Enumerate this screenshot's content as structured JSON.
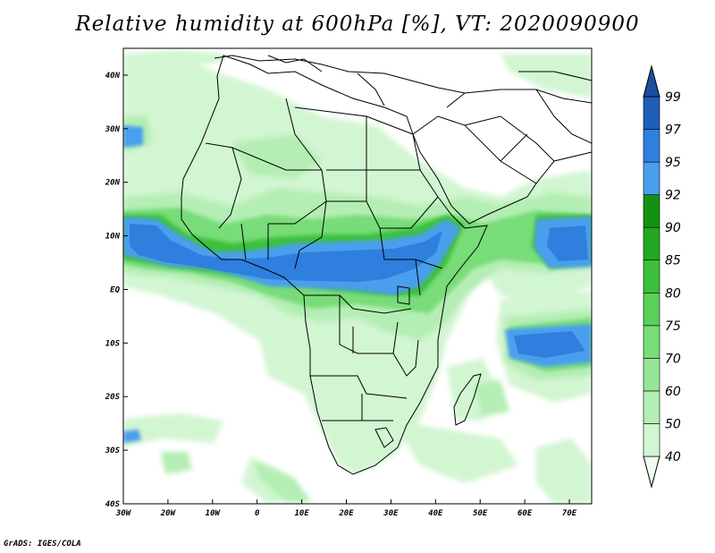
{
  "title": "Relative humidity at 600hPa [%], VT: 2020090900",
  "footer": "GrADS: IGES/COLA",
  "map": {
    "lon_range": [
      -30,
      75
    ],
    "lat_range": [
      -40,
      45
    ],
    "lon_ticks": [
      {
        "value": -30,
        "label": "30W"
      },
      {
        "value": -20,
        "label": "20W"
      },
      {
        "value": -10,
        "label": "10W"
      },
      {
        "value": 0,
        "label": "0"
      },
      {
        "value": 10,
        "label": "10E"
      },
      {
        "value": 20,
        "label": "20E"
      },
      {
        "value": 30,
        "label": "30E"
      },
      {
        "value": 40,
        "label": "40E"
      },
      {
        "value": 50,
        "label": "50E"
      },
      {
        "value": 60,
        "label": "60E"
      },
      {
        "value": 70,
        "label": "70E"
      }
    ],
    "lat_ticks": [
      {
        "value": 40,
        "label": "40N"
      },
      {
        "value": 30,
        "label": "30N"
      },
      {
        "value": 20,
        "label": "20N"
      },
      {
        "value": 10,
        "label": "10N"
      },
      {
        "value": 0,
        "label": "EQ"
      },
      {
        "value": -10,
        "label": "10S"
      },
      {
        "value": -20,
        "label": "20S"
      },
      {
        "value": -30,
        "label": "30S"
      },
      {
        "value": -40,
        "label": "40S"
      }
    ]
  },
  "colorbar": {
    "levels": [
      "40",
      "50",
      "60",
      "70",
      "75",
      "80",
      "85",
      "90",
      "92",
      "95",
      "97",
      "99"
    ],
    "colors": [
      "#f0fcf0",
      "#d2f5d2",
      "#b4eeb4",
      "#96e496",
      "#78dc78",
      "#5ad05a",
      "#3cc03c",
      "#22a822",
      "#129212",
      "#4a9eee",
      "#2f7fde",
      "#1f5fba",
      "#1a4f9e"
    ]
  },
  "humidity_colors": {
    "h50": "#d2f5d2",
    "h60": "#b4eeb4",
    "h75": "#78dc78",
    "h85": "#3cc03c",
    "h95": "#4a9eee",
    "h97": "#2f7fde"
  }
}
